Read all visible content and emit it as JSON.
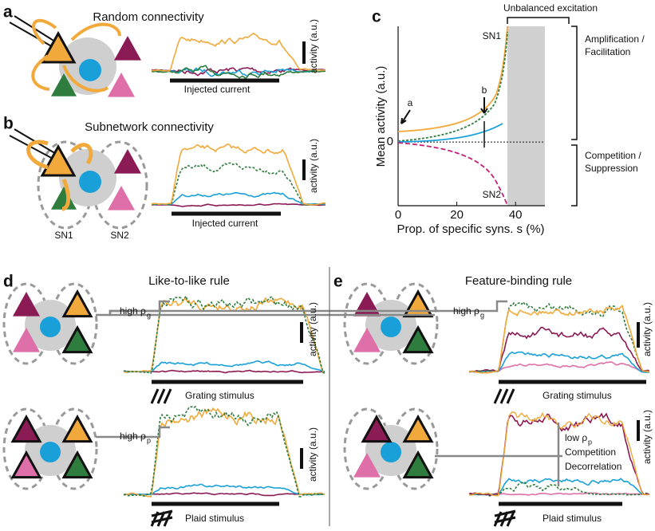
{
  "panel_a": {
    "label": "a",
    "title": "Random connectivity",
    "y_label": "activity (a.u.)",
    "x_label": "Injected current"
  },
  "panel_b": {
    "label": "b",
    "title": "Subnetwork connectivity",
    "y_label": "activity (a.u.)",
    "x_label": "Injected current",
    "groups": [
      "SN1",
      "SN2"
    ]
  },
  "panel_c": {
    "label": "c",
    "chart": {
      "type": "line",
      "x_label": "Prop. of specific syns. s (%)",
      "y_label": "Mean activity (a.u.)",
      "xlim": [
        0,
        50
      ],
      "xticks": [
        0,
        20,
        40
      ],
      "ylim": [
        -0.55,
        1
      ],
      "yticks": [
        0
      ],
      "region_label": "Unbalanced excitation",
      "upper_label": [
        "Amplification /",
        "Facilitation"
      ],
      "lower_label": [
        "Competition /",
        "Suppression"
      ],
      "curve_labels": [
        "SN1",
        "SN2"
      ],
      "markers": [
        "a",
        "b"
      ]
    }
  },
  "panel_d": {
    "label": "d",
    "title": "Like-to-like rule",
    "y_label": "activity (a.u.)",
    "rows": [
      {
        "corr": "high ρ",
        "sub": "g",
        "stimulus": "Grating stimulus"
      },
      {
        "corr": "high ρ",
        "sub": "p",
        "stimulus": "Plaid stimulus"
      }
    ]
  },
  "panel_e": {
    "label": "e",
    "title": "Feature-binding rule",
    "y_label": "activity (a.u.)",
    "rows": [
      {
        "corr": "high ρ",
        "sub": "g",
        "stimulus": "Grating stimulus"
      },
      {
        "corr": "low ρ",
        "sub": "p",
        "notes": [
          "Competition",
          "Decorrelation"
        ],
        "stimulus": "Plaid stimulus"
      }
    ]
  }
}
